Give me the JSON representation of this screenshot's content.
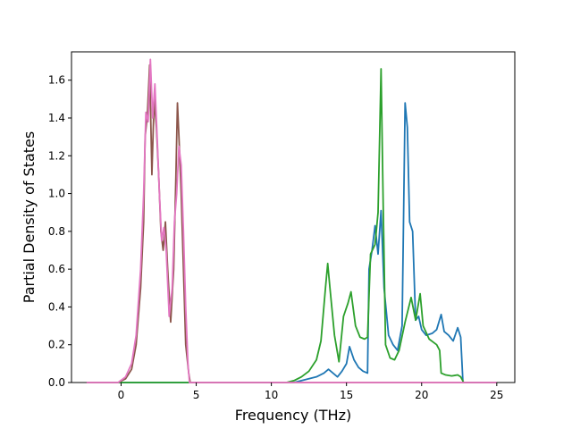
{
  "chart_data": {
    "type": "line",
    "title": "",
    "xlabel": "Frequency (THz)",
    "ylabel": "Partial Density of States",
    "xlim": [
      -3.3,
      26.2
    ],
    "ylim": [
      0,
      1.75
    ],
    "xticks": [
      0,
      5,
      10,
      15,
      20,
      25
    ],
    "yticks": [
      0.0,
      0.2,
      0.4,
      0.6,
      0.8,
      1.0,
      1.2,
      1.4,
      1.6
    ],
    "xtick_labels": [
      "0",
      "5",
      "10",
      "15",
      "20",
      "25"
    ],
    "ytick_labels": [
      "0.0",
      "0.2",
      "0.4",
      "0.6",
      "0.8",
      "1.0",
      "1.2",
      "1.4",
      "1.6"
    ],
    "grid": false,
    "legend": "none",
    "series": [
      {
        "color": "#1f77b4",
        "points": [
          [
            -2.3,
            0
          ],
          [
            11.5,
            0
          ],
          [
            12,
            0.01
          ],
          [
            12.5,
            0.02
          ],
          [
            13,
            0.03
          ],
          [
            13.5,
            0.05
          ],
          [
            13.8,
            0.07
          ],
          [
            14.1,
            0.05
          ],
          [
            14.4,
            0.03
          ],
          [
            14.7,
            0.06
          ],
          [
            15,
            0.1
          ],
          [
            15.2,
            0.19
          ],
          [
            15.5,
            0.12
          ],
          [
            15.8,
            0.08
          ],
          [
            16.1,
            0.06
          ],
          [
            16.4,
            0.05
          ],
          [
            16.5,
            0.6
          ],
          [
            16.7,
            0.7
          ],
          [
            16.9,
            0.83
          ],
          [
            17.1,
            0.68
          ],
          [
            17.3,
            0.91
          ],
          [
            17.5,
            0.5
          ],
          [
            17.8,
            0.25
          ],
          [
            18.1,
            0.2
          ],
          [
            18.4,
            0.17
          ],
          [
            18.7,
            0.3
          ],
          [
            18.9,
            1.48
          ],
          [
            19.05,
            1.35
          ],
          [
            19.2,
            0.85
          ],
          [
            19.4,
            0.8
          ],
          [
            19.6,
            0.33
          ],
          [
            19.8,
            0.35
          ],
          [
            20,
            0.28
          ],
          [
            20.3,
            0.25
          ],
          [
            20.7,
            0.26
          ],
          [
            21,
            0.28
          ],
          [
            21.3,
            0.36
          ],
          [
            21.5,
            0.27
          ],
          [
            21.8,
            0.25
          ],
          [
            22.1,
            0.22
          ],
          [
            22.4,
            0.29
          ],
          [
            22.6,
            0.24
          ],
          [
            22.75,
            0.0
          ],
          [
            25,
            0
          ]
        ]
      },
      {
        "color": "#2ca02c",
        "points": [
          [
            -2.3,
            0
          ],
          [
            11,
            0
          ],
          [
            11.5,
            0.01
          ],
          [
            12,
            0.03
          ],
          [
            12.5,
            0.06
          ],
          [
            13,
            0.12
          ],
          [
            13.3,
            0.22
          ],
          [
            13.6,
            0.5
          ],
          [
            13.75,
            0.63
          ],
          [
            13.9,
            0.5
          ],
          [
            14.2,
            0.25
          ],
          [
            14.5,
            0.11
          ],
          [
            14.8,
            0.35
          ],
          [
            15.1,
            0.42
          ],
          [
            15.3,
            0.48
          ],
          [
            15.6,
            0.3
          ],
          [
            15.9,
            0.24
          ],
          [
            16.2,
            0.23
          ],
          [
            16.4,
            0.24
          ],
          [
            16.6,
            0.68
          ],
          [
            16.9,
            0.73
          ],
          [
            17.1,
            0.9
          ],
          [
            17.3,
            1.66
          ],
          [
            17.45,
            0.9
          ],
          [
            17.6,
            0.2
          ],
          [
            17.9,
            0.13
          ],
          [
            18.2,
            0.12
          ],
          [
            18.5,
            0.17
          ],
          [
            18.9,
            0.32
          ],
          [
            19.3,
            0.45
          ],
          [
            19.6,
            0.33
          ],
          [
            19.9,
            0.47
          ],
          [
            20.1,
            0.3
          ],
          [
            20.5,
            0.23
          ],
          [
            21,
            0.2
          ],
          [
            21.2,
            0.17
          ],
          [
            21.3,
            0.05
          ],
          [
            21.6,
            0.04
          ],
          [
            22,
            0.035
          ],
          [
            22.4,
            0.04
          ],
          [
            22.6,
            0.03
          ],
          [
            22.8,
            0
          ],
          [
            25,
            0
          ]
        ]
      },
      {
        "color": "#8c564b",
        "points": [
          [
            -2.3,
            0
          ],
          [
            -0.2,
            0
          ],
          [
            0.3,
            0.02
          ],
          [
            0.7,
            0.07
          ],
          [
            1.0,
            0.2
          ],
          [
            1.3,
            0.5
          ],
          [
            1.5,
            0.85
          ],
          [
            1.6,
            1.3
          ],
          [
            1.75,
            1.42
          ],
          [
            1.9,
            1.68
          ],
          [
            2.05,
            1.1
          ],
          [
            2.2,
            1.5
          ],
          [
            2.35,
            1.35
          ],
          [
            2.5,
            1.1
          ],
          [
            2.65,
            0.8
          ],
          [
            2.8,
            0.7
          ],
          [
            2.95,
            0.85
          ],
          [
            3.1,
            0.6
          ],
          [
            3.3,
            0.32
          ],
          [
            3.5,
            0.6
          ],
          [
            3.65,
            1.1
          ],
          [
            3.75,
            1.48
          ],
          [
            3.85,
            1.3
          ],
          [
            4.0,
            1.0
          ],
          [
            4.15,
            0.6
          ],
          [
            4.3,
            0.2
          ],
          [
            4.5,
            0.05
          ],
          [
            4.6,
            0
          ],
          [
            25,
            0
          ]
        ]
      },
      {
        "color": "#e377c2",
        "points": [
          [
            -2.3,
            0
          ],
          [
            -0.2,
            0
          ],
          [
            0.3,
            0.03
          ],
          [
            0.7,
            0.1
          ],
          [
            1.0,
            0.25
          ],
          [
            1.3,
            0.6
          ],
          [
            1.5,
            1.0
          ],
          [
            1.65,
            1.43
          ],
          [
            1.8,
            1.38
          ],
          [
            1.95,
            1.71
          ],
          [
            2.1,
            1.4
          ],
          [
            2.25,
            1.58
          ],
          [
            2.4,
            1.3
          ],
          [
            2.55,
            1.0
          ],
          [
            2.7,
            0.75
          ],
          [
            2.85,
            0.82
          ],
          [
            3.0,
            0.7
          ],
          [
            3.2,
            0.35
          ],
          [
            3.4,
            0.5
          ],
          [
            3.55,
            0.85
          ],
          [
            3.7,
            1.0
          ],
          [
            3.85,
            1.25
          ],
          [
            4.0,
            1.15
          ],
          [
            4.15,
            0.8
          ],
          [
            4.3,
            0.4
          ],
          [
            4.45,
            0.1
          ],
          [
            4.55,
            0
          ],
          [
            25,
            0
          ]
        ]
      }
    ]
  }
}
